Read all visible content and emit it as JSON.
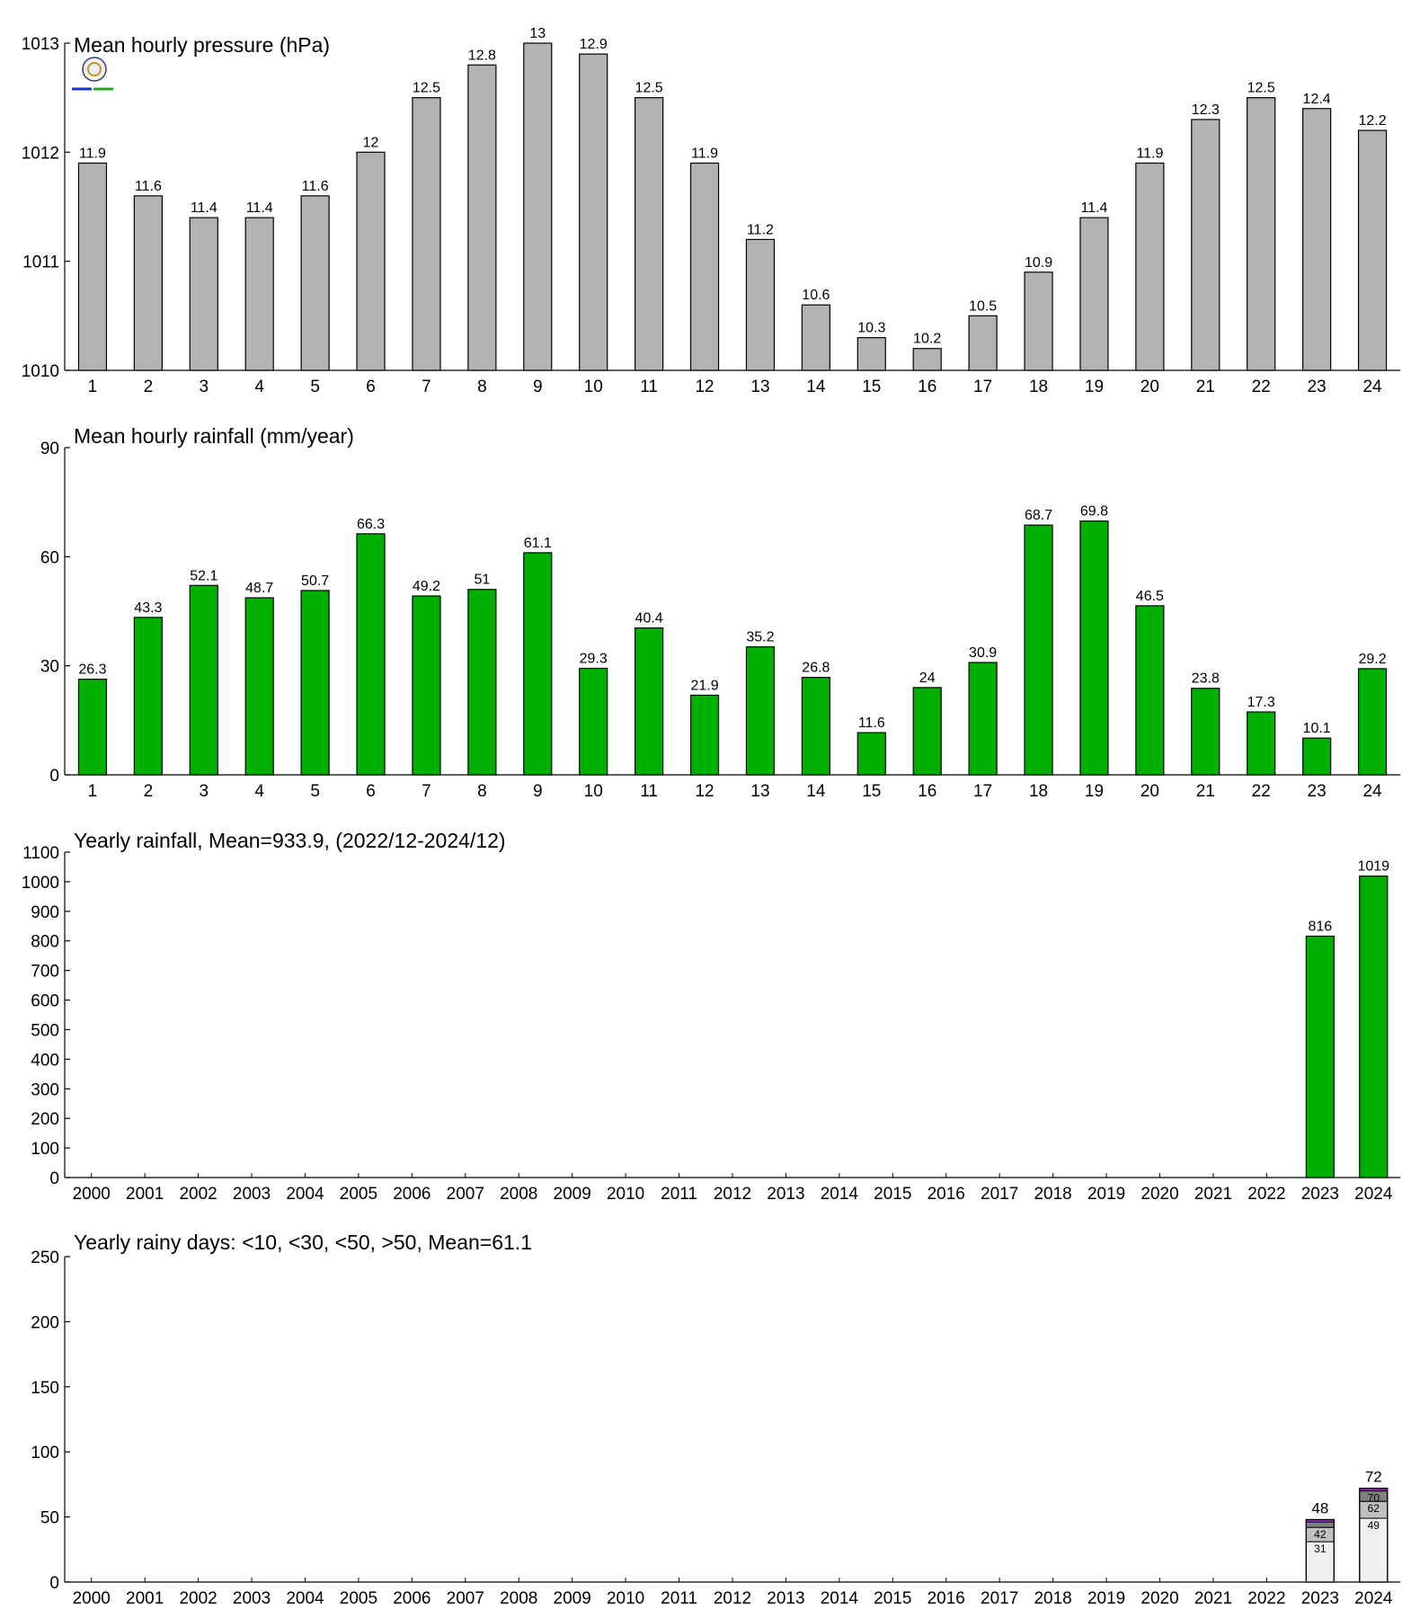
{
  "chart_data": [
    {
      "type": "bar",
      "title": "Mean hourly pressure (hPa)",
      "categories": [
        "1",
        "2",
        "3",
        "4",
        "5",
        "6",
        "7",
        "8",
        "9",
        "10",
        "11",
        "12",
        "13",
        "14",
        "15",
        "16",
        "17",
        "18",
        "19",
        "20",
        "21",
        "22",
        "23",
        "24"
      ],
      "values": [
        1011.9,
        1011.6,
        1011.4,
        1011.4,
        1011.6,
        1012.0,
        1012.5,
        1012.8,
        1013.0,
        1012.9,
        1012.5,
        1011.9,
        1011.2,
        1010.6,
        1010.3,
        1010.2,
        1010.5,
        1010.9,
        1011.4,
        1011.9,
        1012.3,
        1012.5,
        1012.4,
        1012.2
      ],
      "data_labels": [
        "11.9",
        "11.6",
        "11.4",
        "11.4",
        "11.6",
        "12",
        "12.5",
        "12.8",
        "13",
        "12.9",
        "12.5",
        "11.9",
        "11.2",
        "10.6",
        "10.3",
        "10.2",
        "10.5",
        "10.9",
        "11.4",
        "11.9",
        "12.3",
        "12.5",
        "12.4",
        "12.2"
      ],
      "ylim": [
        1010,
        1013
      ],
      "yticks": [
        "1010",
        "1011",
        "1012",
        "1013"
      ],
      "bar_color": "#b3b3b3",
      "has_logo": true
    },
    {
      "type": "bar",
      "title": "Mean hourly rainfall (mm/year)",
      "categories": [
        "1",
        "2",
        "3",
        "4",
        "5",
        "6",
        "7",
        "8",
        "9",
        "10",
        "11",
        "12",
        "13",
        "14",
        "15",
        "16",
        "17",
        "18",
        "19",
        "20",
        "21",
        "22",
        "23",
        "24"
      ],
      "values": [
        26.3,
        43.3,
        52.1,
        48.7,
        50.7,
        66.3,
        49.2,
        51,
        61.1,
        29.3,
        40.4,
        21.9,
        35.2,
        26.8,
        11.6,
        24,
        30.9,
        68.7,
        69.8,
        46.5,
        23.8,
        17.3,
        10.1,
        29.2
      ],
      "data_labels": [
        "26.3",
        "43.3",
        "52.1",
        "48.7",
        "50.7",
        "66.3",
        "49.2",
        "51",
        "61.1",
        "29.3",
        "40.4",
        "21.9",
        "35.2",
        "26.8",
        "11.6",
        "24",
        "30.9",
        "68.7",
        "69.8",
        "46.5",
        "23.8",
        "17.3",
        "10.1",
        "29.2"
      ],
      "ylim": [
        0,
        90
      ],
      "yticks": [
        "0",
        "30",
        "60",
        "90"
      ],
      "bar_color": "#00b000"
    },
    {
      "type": "bar",
      "title": "Yearly rainfall, Mean=933.9, (2022/12-2024/12)",
      "categories": [
        "2000",
        "2001",
        "2002",
        "2003",
        "2004",
        "2005",
        "2006",
        "2007",
        "2008",
        "2009",
        "2010",
        "2011",
        "2012",
        "2013",
        "2014",
        "2015",
        "2016",
        "2017",
        "2018",
        "2019",
        "2020",
        "2021",
        "2022",
        "2023",
        "2024"
      ],
      "values": [
        null,
        null,
        null,
        null,
        null,
        null,
        null,
        null,
        null,
        null,
        null,
        null,
        null,
        null,
        null,
        null,
        null,
        null,
        null,
        null,
        null,
        null,
        null,
        816,
        1019
      ],
      "data_labels": [
        "",
        "",
        "",
        "",
        "",
        "",
        "",
        "",
        "",
        "",
        "",
        "",
        "",
        "",
        "",
        "",
        "",
        "",
        "",
        "",
        "",
        "",
        "",
        "816",
        "1019"
      ],
      "ylim": [
        0,
        1100
      ],
      "yticks": [
        "0",
        "100",
        "200",
        "300",
        "400",
        "500",
        "600",
        "700",
        "800",
        "900",
        "1000",
        "1100"
      ],
      "bar_color": "#00b000"
    },
    {
      "type": "bar",
      "stacked": true,
      "title": "Yearly rainy days: <10, <30, <50, >50, Mean=61.1",
      "categories": [
        "2000",
        "2001",
        "2002",
        "2003",
        "2004",
        "2005",
        "2006",
        "2007",
        "2008",
        "2009",
        "2010",
        "2011",
        "2012",
        "2013",
        "2014",
        "2015",
        "2016",
        "2017",
        "2018",
        "2019",
        "2020",
        "2021",
        "2022",
        "2023",
        "2024"
      ],
      "cumulative": {
        "2023": [
          31,
          42,
          46,
          48
        ],
        "2024": [
          49,
          62,
          70,
          72
        ]
      },
      "segment_labels": {
        "2023": [
          "31",
          "42",
          "",
          ""
        ],
        "2024": [
          "49",
          "62",
          "70",
          ""
        ]
      },
      "totals": {
        "2023": "48",
        "2024": "72"
      },
      "segment_colors": [
        "#f0f0f0",
        "#c0c0c0",
        "#808080",
        "#9a22c8"
      ],
      "ylim": [
        0,
        250
      ],
      "yticks": [
        "0",
        "50",
        "100",
        "150",
        "200",
        "250"
      ]
    }
  ]
}
